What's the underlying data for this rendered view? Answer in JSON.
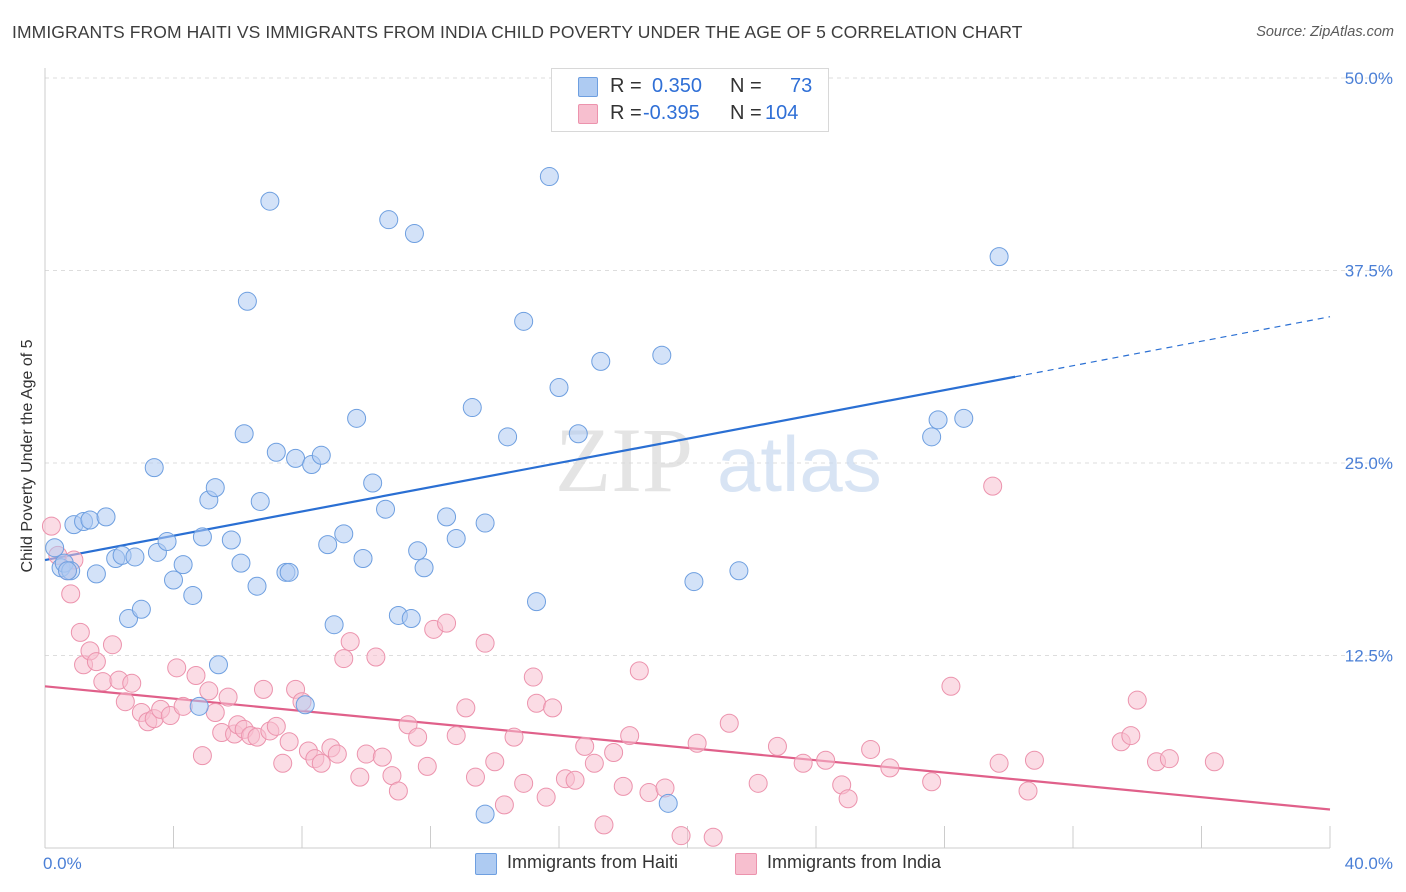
{
  "title": "IMMIGRANTS FROM HAITI VS IMMIGRANTS FROM INDIA CHILD POVERTY UNDER THE AGE OF 5 CORRELATION CHART",
  "source": "Source: ZipAtlas.com",
  "watermark": {
    "zip": "ZIP",
    "atlas": "atlas"
  },
  "legend_top": {
    "rows": [
      {
        "r_label": "R =",
        "r_value": "0.350",
        "n_label": "N =",
        "n_value": "73"
      },
      {
        "r_label": "R =",
        "r_value": "-0.395",
        "n_label": "N =",
        "n_value": "104"
      }
    ]
  },
  "legend_bottom": {
    "items": [
      "Immigrants from Haiti",
      "Immigrants from India"
    ]
  },
  "colors": {
    "haiti_fill": "#aecbf2",
    "haiti_stroke": "#6e9fe0",
    "haiti_line": "#2a6fd3",
    "india_fill": "#f7bfcf",
    "india_stroke": "#ec93ad",
    "india_line": "#e0608a",
    "tick_label": "#4a7fd6",
    "grid": "#dddddd"
  },
  "chart_data": {
    "type": "scatter",
    "title": "IMMIGRANTS FROM HAITI VS IMMIGRANTS FROM INDIA CHILD POVERTY UNDER THE AGE OF 5 CORRELATION CHART",
    "xlabel": "",
    "ylabel": "Child Poverty Under the Age of 5",
    "xlim": [
      0,
      40
    ],
    "ylim": [
      0,
      50
    ],
    "x_tick_labels": [
      "0.0%",
      "40.0%"
    ],
    "y_ticks": [
      12.5,
      25.0,
      37.5,
      50.0
    ],
    "y_tick_labels": [
      "12.5%",
      "25.0%",
      "37.5%",
      "50.0%"
    ],
    "grid": "horizontal dashed",
    "legend": "top-center",
    "series": [
      {
        "name": "Immigrants from Haiti",
        "r": 0.35,
        "n": 73,
        "trend": {
          "x": [
            0,
            30.2
          ],
          "y": [
            18.7,
            30.6
          ],
          "dashed_to": [
            40,
            34.5
          ]
        },
        "points": [
          [
            0.3,
            19.5
          ],
          [
            0.5,
            18.2
          ],
          [
            0.6,
            18.5
          ],
          [
            0.8,
            18.0
          ],
          [
            0.9,
            21.0
          ],
          [
            1.2,
            21.2
          ],
          [
            1.4,
            21.3
          ],
          [
            1.9,
            21.5
          ],
          [
            1.6,
            17.8
          ],
          [
            2.2,
            18.8
          ],
          [
            2.4,
            19.0
          ],
          [
            2.8,
            18.9
          ],
          [
            2.6,
            14.9
          ],
          [
            3.0,
            15.5
          ],
          [
            3.4,
            24.7
          ],
          [
            3.5,
            19.2
          ],
          [
            3.8,
            19.9
          ],
          [
            4.0,
            17.4
          ],
          [
            4.3,
            18.4
          ],
          [
            4.6,
            16.4
          ],
          [
            4.8,
            9.2
          ],
          [
            4.9,
            20.2
          ],
          [
            5.1,
            22.6
          ],
          [
            5.3,
            23.4
          ],
          [
            5.4,
            11.9
          ],
          [
            5.8,
            20.0
          ],
          [
            6.1,
            18.5
          ],
          [
            6.2,
            26.9
          ],
          [
            6.3,
            35.5
          ],
          [
            6.6,
            17.0
          ],
          [
            6.7,
            22.5
          ],
          [
            7.0,
            42.0
          ],
          [
            7.2,
            25.7
          ],
          [
            7.5,
            17.9
          ],
          [
            7.6,
            17.9
          ],
          [
            7.8,
            25.3
          ],
          [
            8.1,
            9.3
          ],
          [
            8.3,
            24.9
          ],
          [
            8.6,
            25.5
          ],
          [
            8.8,
            19.7
          ],
          [
            9.0,
            14.5
          ],
          [
            9.3,
            20.4
          ],
          [
            9.7,
            27.9
          ],
          [
            9.9,
            18.8
          ],
          [
            10.2,
            23.7
          ],
          [
            10.6,
            22.0
          ],
          [
            10.7,
            40.8
          ],
          [
            11.0,
            15.1
          ],
          [
            11.4,
            14.9
          ],
          [
            11.5,
            39.9
          ],
          [
            11.6,
            19.3
          ],
          [
            11.8,
            18.2
          ],
          [
            12.5,
            21.5
          ],
          [
            12.8,
            20.1
          ],
          [
            13.3,
            28.6
          ],
          [
            13.7,
            21.1
          ],
          [
            14.4,
            26.7
          ],
          [
            14.9,
            34.2
          ],
          [
            15.3,
            16.0
          ],
          [
            15.7,
            43.6
          ],
          [
            16.0,
            29.9
          ],
          [
            16.6,
            26.9
          ],
          [
            17.3,
            31.6
          ],
          [
            19.2,
            32.0
          ],
          [
            19.4,
            2.9
          ],
          [
            20.2,
            17.3
          ],
          [
            21.6,
            18.0
          ],
          [
            27.6,
            26.7
          ],
          [
            27.8,
            27.8
          ],
          [
            28.6,
            27.9
          ],
          [
            29.7,
            38.4
          ],
          [
            13.7,
            2.2
          ],
          [
            0.7,
            18.0
          ]
        ]
      },
      {
        "name": "Immigrants from India",
        "r": -0.395,
        "n": 104,
        "trend": {
          "x": [
            0,
            40
          ],
          "y": [
            10.5,
            2.5
          ]
        },
        "points": [
          [
            0.2,
            20.9
          ],
          [
            0.4,
            19.0
          ],
          [
            0.7,
            18.0
          ],
          [
            0.9,
            18.7
          ],
          [
            0.8,
            16.5
          ],
          [
            1.2,
            11.9
          ],
          [
            1.4,
            12.8
          ],
          [
            1.6,
            12.1
          ],
          [
            1.8,
            10.8
          ],
          [
            2.1,
            13.2
          ],
          [
            2.3,
            10.9
          ],
          [
            2.5,
            9.5
          ],
          [
            2.7,
            10.7
          ],
          [
            3.0,
            8.8
          ],
          [
            3.2,
            8.2
          ],
          [
            3.4,
            8.4
          ],
          [
            3.6,
            9.0
          ],
          [
            3.9,
            8.6
          ],
          [
            4.1,
            11.7
          ],
          [
            4.3,
            9.2
          ],
          [
            4.7,
            11.2
          ],
          [
            4.9,
            6.0
          ],
          [
            5.1,
            10.2
          ],
          [
            5.3,
            8.8
          ],
          [
            5.5,
            7.5
          ],
          [
            5.7,
            9.8
          ],
          [
            5.9,
            7.4
          ],
          [
            6.0,
            8.0
          ],
          [
            6.2,
            7.7
          ],
          [
            6.4,
            7.3
          ],
          [
            6.6,
            7.2
          ],
          [
            6.8,
            10.3
          ],
          [
            7.0,
            7.6
          ],
          [
            7.2,
            7.9
          ],
          [
            7.4,
            5.5
          ],
          [
            7.6,
            6.9
          ],
          [
            7.8,
            10.3
          ],
          [
            8.0,
            9.5
          ],
          [
            8.2,
            6.3
          ],
          [
            8.4,
            5.8
          ],
          [
            8.6,
            5.5
          ],
          [
            8.9,
            6.5
          ],
          [
            9.1,
            6.1
          ],
          [
            9.3,
            12.3
          ],
          [
            9.5,
            13.4
          ],
          [
            9.8,
            4.6
          ],
          [
            10.0,
            6.1
          ],
          [
            10.3,
            12.4
          ],
          [
            10.5,
            5.9
          ],
          [
            10.8,
            4.7
          ],
          [
            11.0,
            3.7
          ],
          [
            11.3,
            8.0
          ],
          [
            11.6,
            7.2
          ],
          [
            11.9,
            5.3
          ],
          [
            12.1,
            14.2
          ],
          [
            12.5,
            14.6
          ],
          [
            12.8,
            7.3
          ],
          [
            13.1,
            9.1
          ],
          [
            13.4,
            4.6
          ],
          [
            13.7,
            13.3
          ],
          [
            14.0,
            5.6
          ],
          [
            14.3,
            2.8
          ],
          [
            14.6,
            7.2
          ],
          [
            14.9,
            4.2
          ],
          [
            15.2,
            11.1
          ],
          [
            15.3,
            9.4
          ],
          [
            15.6,
            3.3
          ],
          [
            15.8,
            9.1
          ],
          [
            16.2,
            4.5
          ],
          [
            16.5,
            4.4
          ],
          [
            16.8,
            6.6
          ],
          [
            17.1,
            5.5
          ],
          [
            17.4,
            1.5
          ],
          [
            17.7,
            6.2
          ],
          [
            18.0,
            4.0
          ],
          [
            18.2,
            7.3
          ],
          [
            18.5,
            11.5
          ],
          [
            18.8,
            3.6
          ],
          [
            19.3,
            3.9
          ],
          [
            19.8,
            0.8
          ],
          [
            20.3,
            6.8
          ],
          [
            20.8,
            0.7
          ],
          [
            21.3,
            8.1
          ],
          [
            22.2,
            4.2
          ],
          [
            22.8,
            6.6
          ],
          [
            23.6,
            5.5
          ],
          [
            24.3,
            5.7
          ],
          [
            24.8,
            4.1
          ],
          [
            25.0,
            3.2
          ],
          [
            25.7,
            6.4
          ],
          [
            26.3,
            5.2
          ],
          [
            27.6,
            4.3
          ],
          [
            28.2,
            10.5
          ],
          [
            29.7,
            5.5
          ],
          [
            30.6,
            3.7
          ],
          [
            30.8,
            5.7
          ],
          [
            33.5,
            6.9
          ],
          [
            33.8,
            7.3
          ],
          [
            34.0,
            9.6
          ],
          [
            34.6,
            5.6
          ],
          [
            35.0,
            5.8
          ],
          [
            36.4,
            5.6
          ],
          [
            29.5,
            23.5
          ],
          [
            1.1,
            14.0
          ]
        ]
      }
    ]
  }
}
